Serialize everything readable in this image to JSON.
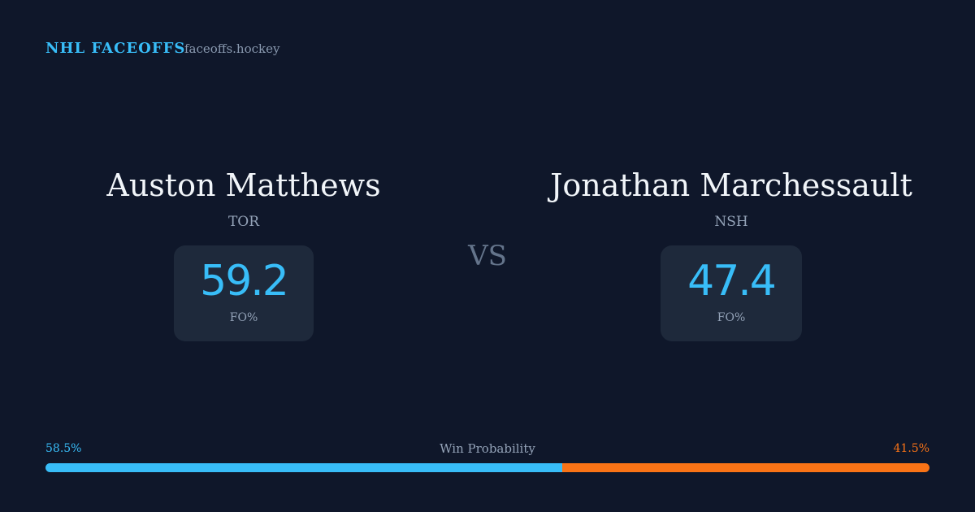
{
  "header": {
    "brand": "NHL FACEOFFS",
    "site": "faceoffs.hockey"
  },
  "players": [
    {
      "name": "Auston Matthews",
      "team": "TOR",
      "stat": 59.2,
      "stat_label": "FO%"
    },
    {
      "name": "Jonathan Marchessault",
      "team": "NSH",
      "stat": 47.4,
      "stat_label": "FO%"
    }
  ],
  "versus": "VS",
  "win_probability": {
    "label": "Win Probability",
    "values": [
      {
        "value": 58.5,
        "label": "58.5%"
      },
      {
        "value": 41.5,
        "label": "41.5%"
      }
    ],
    "colors": [
      "#38bdf8",
      "#f97316"
    ]
  }
}
